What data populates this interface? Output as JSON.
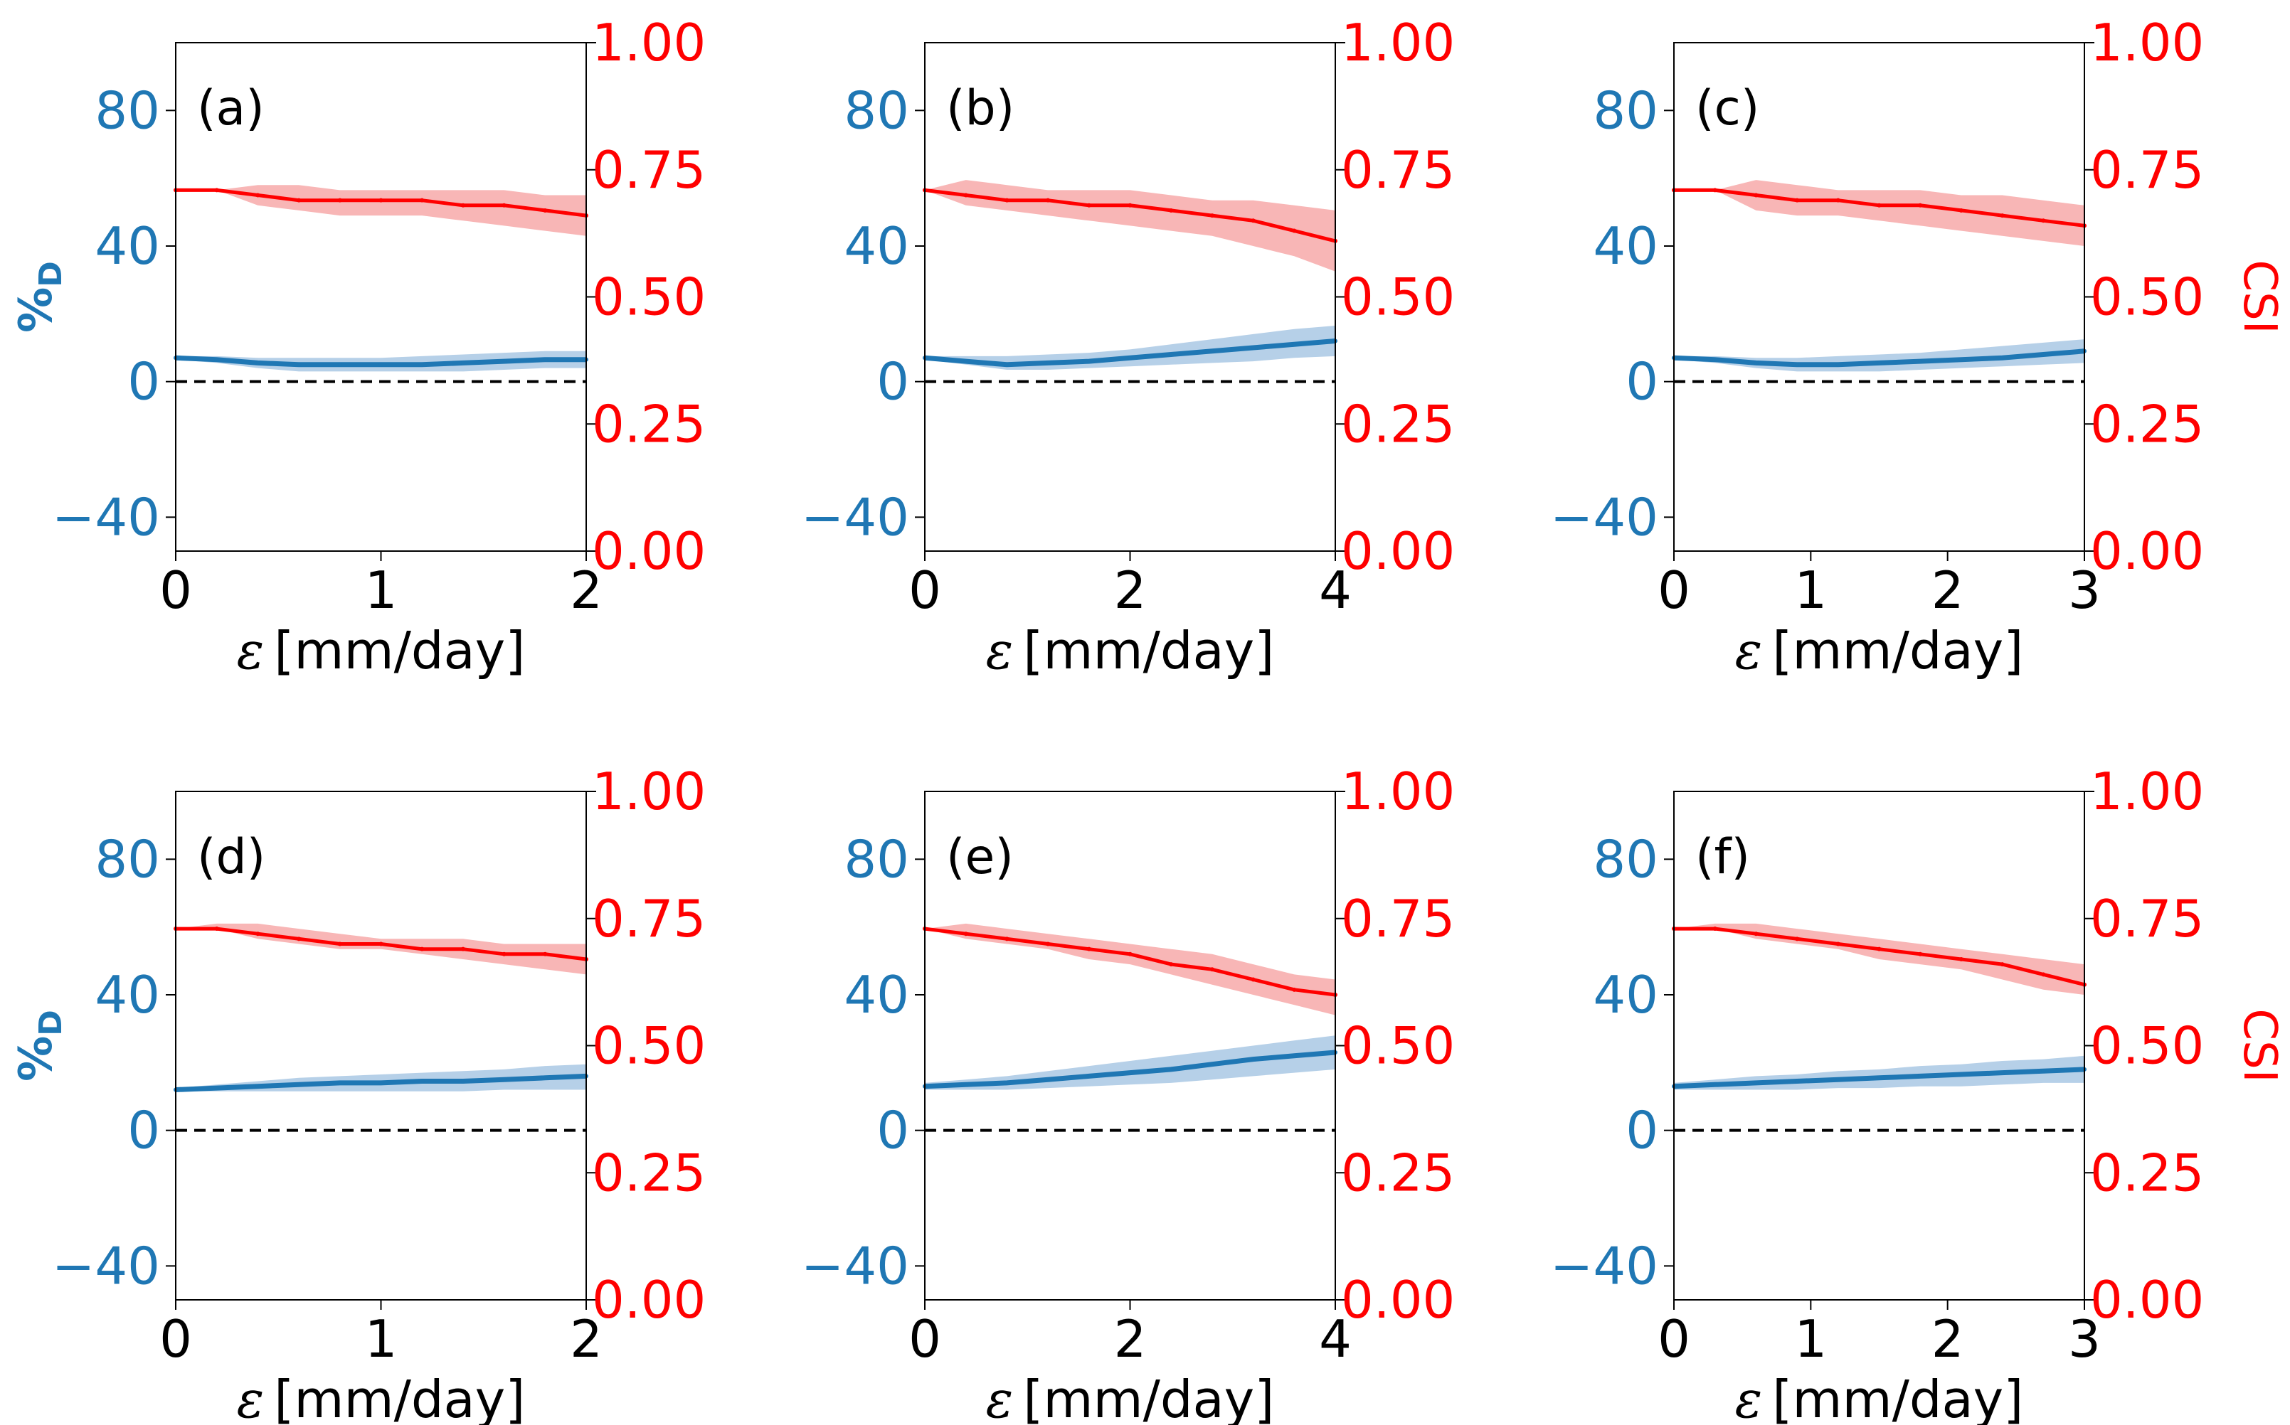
{
  "figure": {
    "left_ylabel": "%D",
    "left_ylabel_main": "%",
    "left_ylabel_sub": "D",
    "right_ylabel": "CSI",
    "xlabel_symbol": "ε",
    "xlabel_unit": "[mm/day]"
  },
  "colors": {
    "blue": "#1f77b4",
    "blue_band": "#a9c8e4",
    "red": "#ff0000",
    "red_band": "#f7a9a9",
    "axis": "#000000",
    "zero_line": "#000000"
  },
  "chart_data": [
    {
      "type": "line",
      "label": "(a)",
      "xlabel": "ε [mm/day]",
      "xlim": [
        0,
        2
      ],
      "xticks": [
        "0",
        "1",
        "2"
      ],
      "ylim_left": [
        -50,
        100
      ],
      "yticks_left": [
        "−40",
        "0",
        "40",
        "80"
      ],
      "ylim_right": [
        0,
        1
      ],
      "yticks_right": [
        "0.00",
        "0.25",
        "0.50",
        "0.75",
        "1.00"
      ],
      "series": [
        {
          "name": "%D",
          "axis": "left",
          "x": [
            0,
            0.2,
            0.4,
            0.6,
            0.8,
            1.0,
            1.2,
            1.4,
            1.6,
            1.8,
            2.0
          ],
          "values": [
            7,
            6.5,
            5.5,
            5,
            5,
            5,
            5,
            5.5,
            6,
            6.5,
            6.5
          ],
          "band_lower": [
            6.5,
            5.5,
            4,
            3,
            3,
            3,
            3,
            3,
            3.5,
            4,
            4
          ],
          "band_upper": [
            7.5,
            7.5,
            7,
            7,
            7,
            7,
            7.5,
            8,
            8.5,
            9,
            9
          ]
        },
        {
          "name": "CSI",
          "axis": "right",
          "x": [
            0,
            0.2,
            0.4,
            0.6,
            0.8,
            1.0,
            1.2,
            1.4,
            1.6,
            1.8,
            2.0
          ],
          "values": [
            0.71,
            0.71,
            0.7,
            0.69,
            0.69,
            0.69,
            0.69,
            0.68,
            0.68,
            0.67,
            0.66
          ],
          "band_lower": [
            0.71,
            0.71,
            0.68,
            0.67,
            0.66,
            0.66,
            0.66,
            0.65,
            0.64,
            0.63,
            0.62
          ],
          "band_upper": [
            0.71,
            0.71,
            0.72,
            0.72,
            0.71,
            0.71,
            0.71,
            0.71,
            0.71,
            0.7,
            0.7
          ]
        }
      ]
    },
    {
      "type": "line",
      "label": "(b)",
      "xlabel": "ε [mm/day]",
      "xlim": [
        0,
        4
      ],
      "xticks": [
        "0",
        "2",
        "4"
      ],
      "ylim_left": [
        -50,
        100
      ],
      "yticks_left": [
        "−40",
        "0",
        "40",
        "80"
      ],
      "ylim_right": [
        0,
        1
      ],
      "yticks_right": [
        "0.00",
        "0.25",
        "0.50",
        "0.75",
        "1.00"
      ],
      "series": [
        {
          "name": "%D",
          "axis": "left",
          "x": [
            0,
            0.4,
            0.8,
            1.2,
            1.6,
            2.0,
            2.4,
            2.8,
            3.2,
            3.6,
            4.0
          ],
          "values": [
            7,
            6,
            5,
            5.5,
            6,
            7,
            8,
            9,
            10,
            11,
            12
          ],
          "band_lower": [
            6.5,
            5,
            3.5,
            3.5,
            4,
            4.5,
            5,
            5.5,
            6,
            7,
            7.5
          ],
          "band_upper": [
            7.5,
            7.5,
            7.5,
            8,
            8.5,
            9.5,
            11,
            12.5,
            14,
            15.5,
            16.5
          ]
        },
        {
          "name": "CSI",
          "axis": "right",
          "x": [
            0,
            0.4,
            0.8,
            1.2,
            1.6,
            2.0,
            2.4,
            2.8,
            3.2,
            3.6,
            4.0
          ],
          "values": [
            0.71,
            0.7,
            0.69,
            0.69,
            0.68,
            0.68,
            0.67,
            0.66,
            0.65,
            0.63,
            0.61
          ],
          "band_lower": [
            0.71,
            0.68,
            0.67,
            0.66,
            0.65,
            0.64,
            0.63,
            0.62,
            0.6,
            0.58,
            0.55
          ],
          "band_upper": [
            0.71,
            0.73,
            0.72,
            0.71,
            0.71,
            0.71,
            0.7,
            0.69,
            0.69,
            0.68,
            0.67
          ]
        }
      ]
    },
    {
      "type": "line",
      "label": "(c)",
      "xlabel": "ε [mm/day]",
      "xlim": [
        0,
        3
      ],
      "xticks": [
        "0",
        "1",
        "2",
        "3"
      ],
      "ylim_left": [
        -50,
        100
      ],
      "yticks_left": [
        "−40",
        "0",
        "40",
        "80"
      ],
      "ylim_right": [
        0,
        1
      ],
      "yticks_right": [
        "0.00",
        "0.25",
        "0.50",
        "0.75",
        "1.00"
      ],
      "series": [
        {
          "name": "%D",
          "axis": "left",
          "x": [
            0,
            0.3,
            0.6,
            0.9,
            1.2,
            1.5,
            1.8,
            2.1,
            2.4,
            2.7,
            3.0
          ],
          "values": [
            7,
            6.5,
            5.5,
            5,
            5,
            5.5,
            6,
            6.5,
            7,
            8,
            9
          ],
          "band_lower": [
            6.5,
            5.5,
            4,
            3,
            3,
            3,
            3.5,
            4,
            4.5,
            5,
            5.5
          ],
          "band_upper": [
            7.5,
            7.5,
            7,
            7,
            7.5,
            8,
            8.5,
            9.5,
            10.5,
            11.5,
            12.5
          ]
        },
        {
          "name": "CSI",
          "axis": "right",
          "x": [
            0,
            0.3,
            0.6,
            0.9,
            1.2,
            1.5,
            1.8,
            2.1,
            2.4,
            2.7,
            3.0
          ],
          "values": [
            0.71,
            0.71,
            0.7,
            0.69,
            0.69,
            0.68,
            0.68,
            0.67,
            0.66,
            0.65,
            0.64
          ],
          "band_lower": [
            0.71,
            0.71,
            0.67,
            0.66,
            0.66,
            0.65,
            0.64,
            0.63,
            0.62,
            0.61,
            0.6
          ],
          "band_upper": [
            0.71,
            0.71,
            0.73,
            0.72,
            0.71,
            0.71,
            0.71,
            0.7,
            0.7,
            0.69,
            0.68
          ]
        }
      ]
    },
    {
      "type": "line",
      "label": "(d)",
      "xlabel": "ε [mm/day]",
      "xlim": [
        0,
        2
      ],
      "xticks": [
        "0",
        "1",
        "2"
      ],
      "ylim_left": [
        -50,
        100
      ],
      "yticks_left": [
        "−40",
        "0",
        "40",
        "80"
      ],
      "ylim_right": [
        0,
        1
      ],
      "yticks_right": [
        "0.00",
        "0.25",
        "0.50",
        "0.75",
        "1.00"
      ],
      "series": [
        {
          "name": "%D",
          "axis": "left",
          "x": [
            0,
            0.2,
            0.4,
            0.6,
            0.8,
            1.0,
            1.2,
            1.4,
            1.6,
            1.8,
            2.0
          ],
          "values": [
            12,
            12.5,
            13,
            13.5,
            14,
            14,
            14.5,
            14.5,
            15,
            15.5,
            16
          ],
          "band_lower": [
            11.5,
            11.5,
            11.5,
            11.5,
            11.5,
            11.5,
            11.5,
            11.5,
            12,
            12,
            12
          ],
          "band_upper": [
            12.5,
            13.5,
            14.5,
            15.5,
            16,
            16.5,
            17,
            17.5,
            18,
            19,
            19.5
          ]
        },
        {
          "name": "CSI",
          "axis": "right",
          "x": [
            0,
            0.2,
            0.4,
            0.6,
            0.8,
            1.0,
            1.2,
            1.4,
            1.6,
            1.8,
            2.0
          ],
          "values": [
            0.73,
            0.73,
            0.72,
            0.71,
            0.7,
            0.7,
            0.69,
            0.69,
            0.68,
            0.68,
            0.67
          ],
          "band_lower": [
            0.73,
            0.73,
            0.71,
            0.7,
            0.69,
            0.69,
            0.68,
            0.67,
            0.66,
            0.65,
            0.64
          ],
          "band_upper": [
            0.73,
            0.74,
            0.74,
            0.73,
            0.72,
            0.71,
            0.71,
            0.71,
            0.7,
            0.7,
            0.7
          ]
        }
      ]
    },
    {
      "type": "line",
      "label": "(e)",
      "xlabel": "ε [mm/day]",
      "xlim": [
        0,
        4
      ],
      "xticks": [
        "0",
        "2",
        "4"
      ],
      "ylim_left": [
        -50,
        100
      ],
      "yticks_left": [
        "−40",
        "0",
        "40",
        "80"
      ],
      "ylim_right": [
        0,
        1
      ],
      "yticks_right": [
        "0.00",
        "0.25",
        "0.50",
        "0.75",
        "1.00"
      ],
      "series": [
        {
          "name": "%D",
          "axis": "left",
          "x": [
            0,
            0.4,
            0.8,
            1.2,
            1.6,
            2.0,
            2.4,
            2.8,
            3.2,
            3.6,
            4.0
          ],
          "values": [
            13,
            13.5,
            14,
            15,
            16,
            17,
            18,
            19.5,
            21,
            22,
            23
          ],
          "band_lower": [
            12,
            12,
            12,
            12.5,
            13,
            13.5,
            14,
            15,
            16,
            17,
            18
          ],
          "band_upper": [
            14,
            15,
            16,
            17.5,
            19,
            20.5,
            22,
            23.5,
            25,
            26.5,
            28
          ]
        },
        {
          "name": "CSI",
          "axis": "right",
          "x": [
            0,
            0.4,
            0.8,
            1.2,
            1.6,
            2.0,
            2.4,
            2.8,
            3.2,
            3.6,
            4.0
          ],
          "values": [
            0.73,
            0.72,
            0.71,
            0.7,
            0.69,
            0.68,
            0.66,
            0.65,
            0.63,
            0.61,
            0.6
          ],
          "band_lower": [
            0.73,
            0.71,
            0.7,
            0.69,
            0.67,
            0.66,
            0.64,
            0.62,
            0.6,
            0.58,
            0.56
          ],
          "band_upper": [
            0.73,
            0.74,
            0.73,
            0.72,
            0.71,
            0.7,
            0.69,
            0.68,
            0.66,
            0.64,
            0.63
          ]
        }
      ]
    },
    {
      "type": "line",
      "label": "(f)",
      "xlabel": "ε [mm/day]",
      "xlim": [
        0,
        3
      ],
      "xticks": [
        "0",
        "1",
        "2",
        "3"
      ],
      "ylim_left": [
        -50,
        100
      ],
      "yticks_left": [
        "−40",
        "0",
        "40",
        "80"
      ],
      "ylim_right": [
        0,
        1
      ],
      "yticks_right": [
        "0.00",
        "0.25",
        "0.50",
        "0.75",
        "1.00"
      ],
      "series": [
        {
          "name": "%D",
          "axis": "left",
          "x": [
            0,
            0.3,
            0.6,
            0.9,
            1.2,
            1.5,
            1.8,
            2.1,
            2.4,
            2.7,
            3.0
          ],
          "values": [
            13,
            13.5,
            14,
            14.5,
            15,
            15.5,
            16,
            16.5,
            17,
            17.5,
            18
          ],
          "band_lower": [
            12,
            12,
            12,
            12,
            12.5,
            12.5,
            13,
            13,
            13.5,
            14,
            14
          ],
          "band_upper": [
            14,
            15,
            16,
            16.5,
            17.5,
            18,
            19,
            19.5,
            20.5,
            21,
            22
          ]
        },
        {
          "name": "CSI",
          "axis": "right",
          "x": [
            0,
            0.3,
            0.6,
            0.9,
            1.2,
            1.5,
            1.8,
            2.1,
            2.4,
            2.7,
            3.0
          ],
          "values": [
            0.73,
            0.73,
            0.72,
            0.71,
            0.7,
            0.69,
            0.68,
            0.67,
            0.66,
            0.64,
            0.62
          ],
          "band_lower": [
            0.73,
            0.73,
            0.71,
            0.7,
            0.69,
            0.67,
            0.66,
            0.65,
            0.63,
            0.61,
            0.6
          ],
          "band_upper": [
            0.73,
            0.74,
            0.74,
            0.73,
            0.72,
            0.71,
            0.7,
            0.69,
            0.68,
            0.67,
            0.66
          ]
        }
      ]
    }
  ]
}
